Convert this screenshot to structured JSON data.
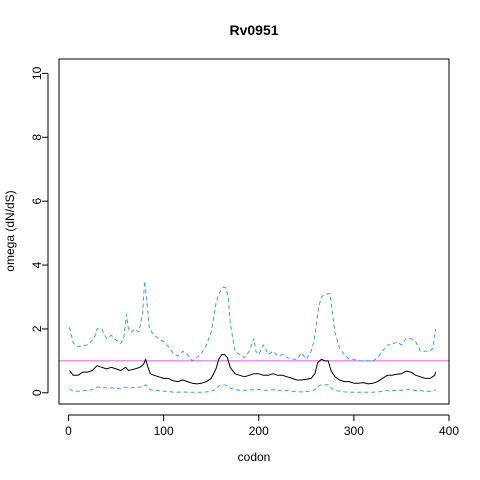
{
  "chart_data": {
    "type": "line",
    "title": "Rv0951",
    "xlabel": "codon",
    "ylabel": "omega (dN/dS)",
    "xlim": [
      -10,
      400
    ],
    "ylim": [
      -0.35,
      10.45
    ],
    "xticks": [
      "0",
      "100",
      "200",
      "300",
      "400"
    ],
    "yticks": [
      "0",
      "2",
      "4",
      "6",
      "8",
      "10"
    ],
    "reference_line": {
      "y": 1,
      "color": "#cc66cc"
    },
    "colors": {
      "omega": "#000000",
      "bounds": "#3aa0e0"
    },
    "series": [
      {
        "key": "upper",
        "style": "dashed",
        "x": [
          1,
          5,
          10,
          20,
          27,
          30,
          35,
          40,
          45,
          50,
          55,
          58,
          61,
          63,
          66,
          70,
          74,
          78,
          80,
          82,
          85,
          90,
          95,
          100,
          105,
          110,
          115,
          120,
          125,
          130,
          135,
          140,
          145,
          150,
          155,
          158,
          160,
          162,
          165,
          168,
          170,
          175,
          180,
          185,
          190,
          195,
          197,
          200,
          205,
          210,
          215,
          220,
          225,
          230,
          235,
          240,
          245,
          250,
          255,
          258,
          260,
          263,
          266,
          270,
          273,
          275,
          280,
          285,
          290,
          295,
          300,
          305,
          310,
          315,
          320,
          325,
          330,
          335,
          340,
          345,
          350,
          355,
          360,
          365,
          370,
          375,
          380,
          383,
          385,
          386
        ],
        "values": [
          2.05,
          1.55,
          1.45,
          1.5,
          1.7,
          2.0,
          2.0,
          1.7,
          1.8,
          1.65,
          1.55,
          1.7,
          2.45,
          2.0,
          1.9,
          2.0,
          1.9,
          2.5,
          3.5,
          3.0,
          2.0,
          1.8,
          1.7,
          1.6,
          1.45,
          1.25,
          1.15,
          1.3,
          1.2,
          1.0,
          1.1,
          1.25,
          1.5,
          1.9,
          2.8,
          3.1,
          3.2,
          3.3,
          3.3,
          3.0,
          2.2,
          1.3,
          1.2,
          1.1,
          1.3,
          1.7,
          1.3,
          1.2,
          1.5,
          1.2,
          1.3,
          1.15,
          1.2,
          1.1,
          1.05,
          1.05,
          1.25,
          1.05,
          1.3,
          1.6,
          2.0,
          2.7,
          3.0,
          3.1,
          3.1,
          3.1,
          1.9,
          1.4,
          1.2,
          1.05,
          1.05,
          1.0,
          1.0,
          1.0,
          1.0,
          1.1,
          1.3,
          1.5,
          1.5,
          1.6,
          1.5,
          1.7,
          1.7,
          1.6,
          1.3,
          1.3,
          1.3,
          1.4,
          1.8,
          2.0
        ]
      },
      {
        "key": "omega",
        "style": "solid",
        "x": [
          1,
          5,
          10,
          15,
          20,
          25,
          30,
          35,
          40,
          45,
          50,
          55,
          60,
          63,
          66,
          70,
          75,
          79,
          81,
          83,
          86,
          90,
          95,
          100,
          105,
          110,
          115,
          120,
          125,
          130,
          135,
          140,
          145,
          150,
          155,
          158,
          161,
          164,
          167,
          170,
          175,
          180,
          185,
          190,
          195,
          200,
          205,
          210,
          215,
          220,
          225,
          230,
          235,
          240,
          245,
          250,
          255,
          259,
          262,
          266,
          270,
          273,
          276,
          280,
          285,
          290,
          295,
          300,
          305,
          310,
          315,
          320,
          325,
          330,
          335,
          340,
          345,
          350,
          355,
          360,
          365,
          370,
          375,
          380,
          385,
          386
        ],
        "values": [
          0.7,
          0.55,
          0.55,
          0.65,
          0.65,
          0.7,
          0.85,
          0.8,
          0.75,
          0.8,
          0.75,
          0.7,
          0.8,
          0.7,
          0.72,
          0.75,
          0.8,
          0.9,
          1.05,
          0.85,
          0.6,
          0.55,
          0.5,
          0.45,
          0.45,
          0.38,
          0.35,
          0.4,
          0.35,
          0.3,
          0.28,
          0.3,
          0.35,
          0.45,
          0.75,
          1.05,
          1.2,
          1.2,
          1.1,
          0.8,
          0.6,
          0.55,
          0.5,
          0.55,
          0.6,
          0.6,
          0.55,
          0.55,
          0.6,
          0.55,
          0.55,
          0.5,
          0.45,
          0.4,
          0.4,
          0.42,
          0.45,
          0.6,
          0.95,
          1.05,
          1.0,
          1.0,
          0.7,
          0.5,
          0.4,
          0.35,
          0.35,
          0.3,
          0.3,
          0.32,
          0.28,
          0.3,
          0.35,
          0.45,
          0.55,
          0.55,
          0.58,
          0.6,
          0.68,
          0.65,
          0.55,
          0.5,
          0.45,
          0.45,
          0.55,
          0.65
        ]
      },
      {
        "key": "lower",
        "style": "dashed",
        "x": [
          1,
          5,
          10,
          15,
          20,
          25,
          30,
          35,
          40,
          45,
          50,
          55,
          60,
          63,
          66,
          70,
          75,
          79,
          81,
          83,
          86,
          90,
          95,
          100,
          105,
          110,
          115,
          120,
          125,
          130,
          135,
          140,
          145,
          150,
          155,
          158,
          161,
          164,
          167,
          170,
          175,
          180,
          185,
          190,
          195,
          200,
          205,
          210,
          215,
          220,
          225,
          230,
          235,
          240,
          245,
          250,
          255,
          259,
          262,
          266,
          270,
          273,
          276,
          280,
          285,
          290,
          295,
          300,
          305,
          310,
          315,
          320,
          325,
          330,
          335,
          340,
          345,
          350,
          355,
          360,
          365,
          370,
          375,
          380,
          385,
          386
        ],
        "values": [
          0.12,
          0.05,
          0.05,
          0.07,
          0.07,
          0.1,
          0.18,
          0.18,
          0.15,
          0.15,
          0.14,
          0.12,
          0.18,
          0.17,
          0.16,
          0.17,
          0.18,
          0.2,
          0.25,
          0.2,
          0.1,
          0.08,
          0.07,
          0.05,
          0.05,
          0.02,
          0.02,
          0.03,
          0.02,
          0.02,
          0.02,
          0.02,
          0.03,
          0.05,
          0.1,
          0.22,
          0.25,
          0.25,
          0.22,
          0.15,
          0.1,
          0.08,
          0.08,
          0.08,
          0.1,
          0.1,
          0.08,
          0.08,
          0.1,
          0.08,
          0.08,
          0.07,
          0.05,
          0.03,
          0.03,
          0.04,
          0.05,
          0.1,
          0.2,
          0.25,
          0.25,
          0.25,
          0.15,
          0.07,
          0.05,
          0.03,
          0.02,
          0.02,
          0.02,
          0.02,
          0.02,
          0.02,
          0.03,
          0.05,
          0.07,
          0.07,
          0.08,
          0.08,
          0.1,
          0.1,
          0.07,
          0.07,
          0.05,
          0.05,
          0.08,
          0.1
        ]
      }
    ]
  }
}
